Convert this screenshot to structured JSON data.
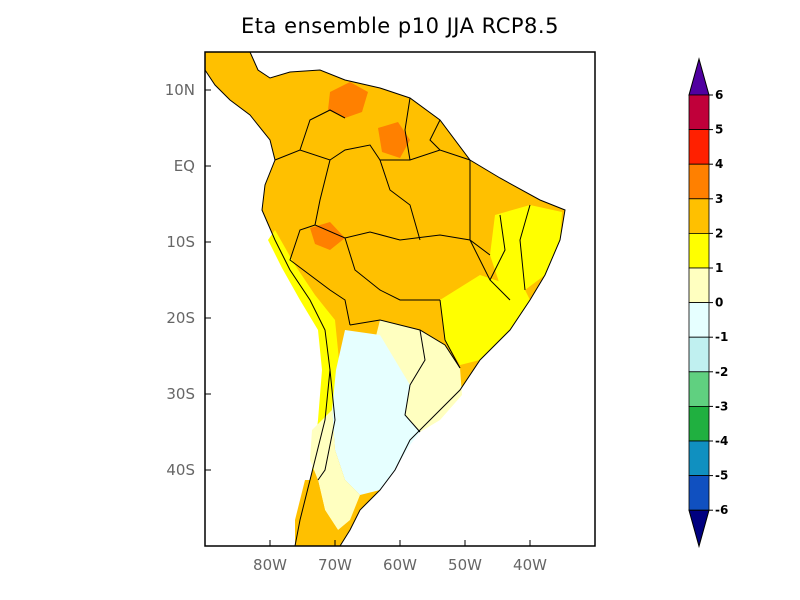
{
  "title": "Eta ensemble p10 JJA RCP8.5",
  "map": {
    "projection": "latlon",
    "lon_range": [
      -90,
      -30
    ],
    "lat_range": [
      -50,
      15
    ],
    "lat_ticks": [
      {
        "lat": 10,
        "label": "10N"
      },
      {
        "lat": 0,
        "label": "EQ"
      },
      {
        "lat": -10,
        "label": "10S"
      },
      {
        "lat": -20,
        "label": "20S"
      },
      {
        "lat": -30,
        "label": "30S"
      },
      {
        "lat": -40,
        "label": "40S"
      }
    ],
    "lon_ticks": [
      {
        "lon": -80,
        "label": "80W"
      },
      {
        "lon": -70,
        "label": "70W"
      },
      {
        "lon": -60,
        "label": "60W"
      },
      {
        "lon": -50,
        "label": "50W"
      },
      {
        "lon": -40,
        "label": "40W"
      }
    ],
    "regions": [
      {
        "id": "northern-south-america",
        "class": "2-3",
        "color": "#ffc000"
      },
      {
        "id": "venezuela-hotspot",
        "class": "3-4",
        "color": "#ff8000"
      },
      {
        "id": "guyana-hotspot",
        "class": "3-4",
        "color": "#ff8000"
      },
      {
        "id": "bolivia-hotspot",
        "class": "3-4",
        "color": "#ff8000"
      },
      {
        "id": "northeast-brazil",
        "class": "1-2",
        "color": "#ffff00"
      },
      {
        "id": "southeast-brazil",
        "class": "1-2",
        "color": "#ffff00"
      },
      {
        "id": "andes-strip",
        "class": "1-2",
        "color": "#ffff00"
      },
      {
        "id": "uruguay-region",
        "class": "0-1",
        "color": "#ffffc0"
      },
      {
        "id": "argentina-central",
        "class": "-1-0",
        "color": "#e6ffff"
      },
      {
        "id": "patagonia-strip",
        "class": "0-1",
        "color": "#ffffc0"
      },
      {
        "id": "southern-chile",
        "class": "2-3",
        "color": "#ffc000"
      }
    ]
  },
  "colorbar": {
    "levels": [
      "6",
      "5",
      "4",
      "3",
      "2",
      "1",
      "0",
      "-1",
      "-2",
      "-3",
      "-4",
      "-5",
      "-6"
    ],
    "bin_colors": [
      "#c0003a",
      "#ff2000",
      "#ff8000",
      "#ffc000",
      "#ffff00",
      "#ffffc0",
      "#e6ffff",
      "#c0f0f0",
      "#60d080",
      "#20b040",
      "#1090c0",
      "#1050c0"
    ],
    "top_triangle_color": "#5000a0",
    "bottom_triangle_color": "#000080"
  }
}
